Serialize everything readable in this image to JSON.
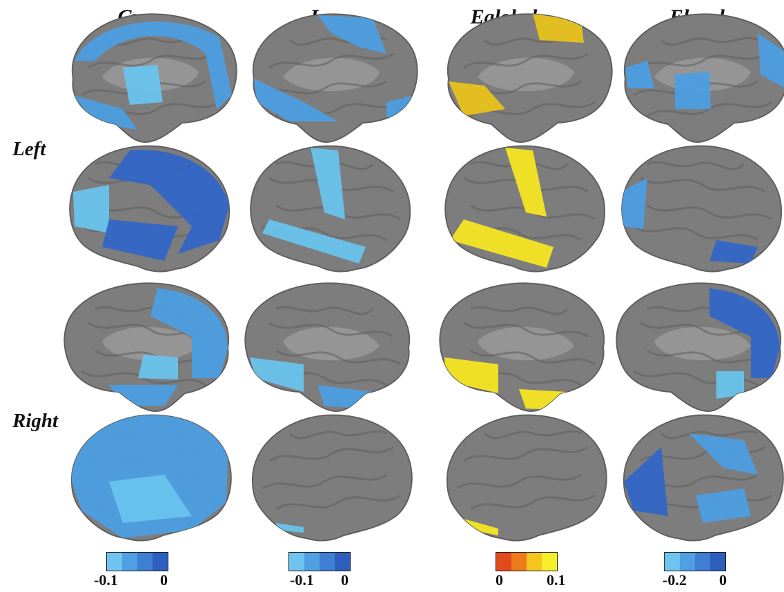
{
  "columns": [
    {
      "title": "Cp",
      "scale_min": "-0.1",
      "scale_max": "0",
      "scale_colors": [
        "#6ec4ee",
        "#4f9fe2",
        "#3e7fd4",
        "#2f5fbe"
      ]
    },
    {
      "title": "Lp",
      "scale_min": "-0.1",
      "scale_max": "0",
      "scale_colors": [
        "#6ec4ee",
        "#4f9fe2",
        "#3e7fd4",
        "#2f5fbe"
      ]
    },
    {
      "title": "Eglobal",
      "scale_min": "0",
      "scale_max": "0.1",
      "scale_colors": [
        "#e04a1c",
        "#ee7a1a",
        "#f4c51f",
        "#f7ee2a"
      ]
    },
    {
      "title": "Elocal",
      "scale_min": "-0.2",
      "scale_max": "0",
      "scale_colors": [
        "#6ec4ee",
        "#4f9fe2",
        "#3e7fd4",
        "#2f5fbe"
      ]
    }
  ],
  "rows": [
    {
      "label": "Left"
    },
    {
      "label": "Right"
    }
  ],
  "colors": {
    "cortex": "#7d7d7d",
    "cortex_dark": "#5f5f5f",
    "medial_wall": "#959595",
    "blue_light": "#69c3ec",
    "blue_mid": "#4d9ee3",
    "blue_dark": "#3366c6",
    "yellow": "#f5e623",
    "yellow_dark": "#e9c21b"
  },
  "panels": [
    {
      "hemisphere": "left",
      "view": "medial",
      "measure": "Cp",
      "highlight": "blue"
    },
    {
      "hemisphere": "left",
      "view": "medial",
      "measure": "Lp",
      "highlight": "blue"
    },
    {
      "hemisphere": "left",
      "view": "medial",
      "measure": "Eglobal",
      "highlight": "yellow"
    },
    {
      "hemisphere": "left",
      "view": "medial",
      "measure": "Elocal",
      "highlight": "blue"
    },
    {
      "hemisphere": "left",
      "view": "lateral",
      "measure": "Cp",
      "highlight": "blue"
    },
    {
      "hemisphere": "left",
      "view": "lateral",
      "measure": "Lp",
      "highlight": "blue"
    },
    {
      "hemisphere": "left",
      "view": "lateral",
      "measure": "Eglobal",
      "highlight": "yellow"
    },
    {
      "hemisphere": "left",
      "view": "lateral",
      "measure": "Elocal",
      "highlight": "blue"
    },
    {
      "hemisphere": "right",
      "view": "medial",
      "measure": "Cp",
      "highlight": "blue"
    },
    {
      "hemisphere": "right",
      "view": "medial",
      "measure": "Lp",
      "highlight": "blue"
    },
    {
      "hemisphere": "right",
      "view": "medial",
      "measure": "Eglobal",
      "highlight": "yellow"
    },
    {
      "hemisphere": "right",
      "view": "medial",
      "measure": "Elocal",
      "highlight": "blue"
    },
    {
      "hemisphere": "right",
      "view": "lateral",
      "measure": "Cp",
      "highlight": "blue"
    },
    {
      "hemisphere": "right",
      "view": "lateral",
      "measure": "Lp",
      "highlight": "blue"
    },
    {
      "hemisphere": "right",
      "view": "lateral",
      "measure": "Eglobal",
      "highlight": "yellow"
    },
    {
      "hemisphere": "right",
      "view": "lateral",
      "measure": "Elocal",
      "highlight": "blue"
    }
  ]
}
